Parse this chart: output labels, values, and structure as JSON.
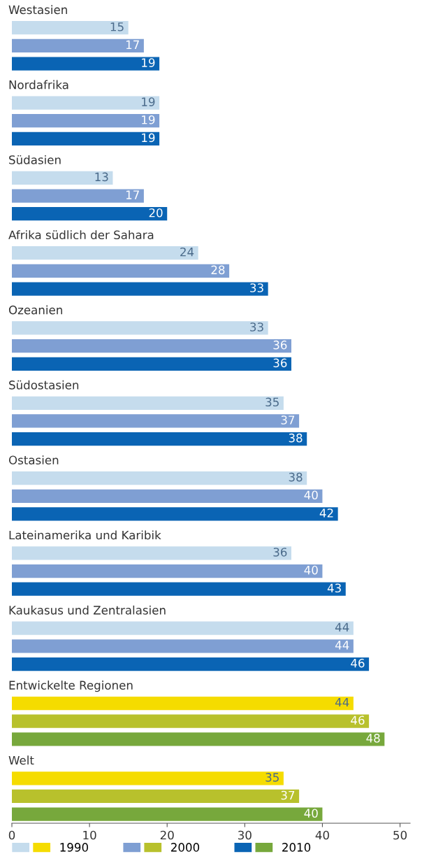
{
  "chart_data": {
    "type": "bar",
    "orientation": "horizontal",
    "categories": [
      "Westasien",
      "Nordafrika",
      "Südasien",
      "Afrika südlich der Sahara",
      "Ozeanien",
      "Südostasien",
      "Ostasien",
      "Lateinamerika und Karibik",
      "Kaukasus und Zentralasien",
      "Entwickelte Regionen",
      "Welt"
    ],
    "series": [
      {
        "name": "1990",
        "colors": [
          "#c5dced",
          "#c5dced",
          "#c5dced",
          "#c5dced",
          "#c5dced",
          "#c5dced",
          "#c5dced",
          "#c5dced",
          "#c5dced",
          "#f5dc00",
          "#f5dc00"
        ],
        "values": [
          15,
          19,
          13,
          24,
          33,
          35,
          38,
          36,
          44,
          44,
          35
        ]
      },
      {
        "name": "2000",
        "colors": [
          "#7f9fd3",
          "#7f9fd3",
          "#7f9fd3",
          "#7f9fd3",
          "#7f9fd3",
          "#7f9fd3",
          "#7f9fd3",
          "#7f9fd3",
          "#7f9fd3",
          "#b8c12c",
          "#b8c12c"
        ],
        "values": [
          17,
          19,
          17,
          28,
          36,
          37,
          40,
          40,
          44,
          46,
          37
        ]
      },
      {
        "name": "2010",
        "colors": [
          "#0a64b4",
          "#0a64b4",
          "#0a64b4",
          "#0a64b4",
          "#0a64b4",
          "#0a64b4",
          "#0a64b4",
          "#0a64b4",
          "#0a64b4",
          "#77a83c",
          "#77a83c"
        ],
        "values": [
          19,
          19,
          20,
          33,
          36,
          38,
          42,
          43,
          46,
          48,
          40
        ]
      }
    ],
    "xlim": [
      0,
      51.3
    ],
    "xticks": [
      0,
      10,
      20,
      30,
      40,
      50
    ],
    "grid": false,
    "legend": "bottom",
    "data_labels": true
  }
}
